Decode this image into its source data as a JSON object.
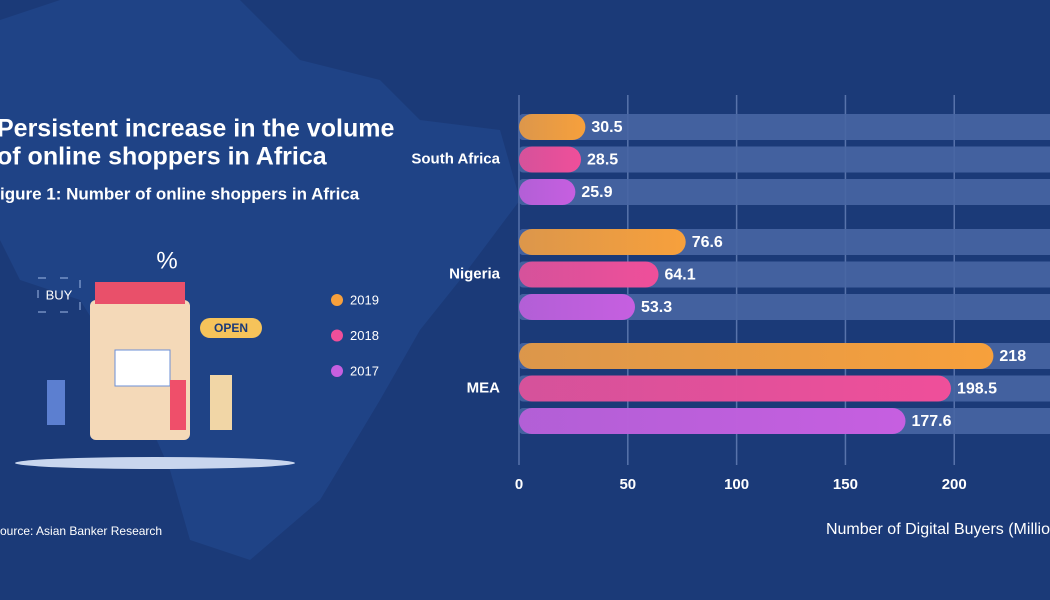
{
  "chart_data": {
    "type": "bar",
    "orientation": "horizontal",
    "title": "Persistent increase in the volume of online shoppers in Africa",
    "subtitle": "igure 1: Number of online shoppers in Africa",
    "source": "ource: Asian Banker Research",
    "xlabel": "Number of Digital Buyers (Millio",
    "categories": [
      "South Africa",
      "Nigeria",
      "MEA"
    ],
    "series": [
      {
        "name": "2019",
        "color": "#f7a03c",
        "values": [
          30.5,
          76.6,
          218
        ]
      },
      {
        "name": "2018",
        "color": "#ef4f9a",
        "values": [
          28.5,
          64.1,
          198.5
        ]
      },
      {
        "name": "2017",
        "color": "#c65fe0",
        "values": [
          25.9,
          53.3,
          177.6
        ]
      }
    ],
    "xlim": [
      0,
      244
    ],
    "xticks": [
      0,
      50,
      100,
      150,
      200
    ],
    "grid": true
  }
}
